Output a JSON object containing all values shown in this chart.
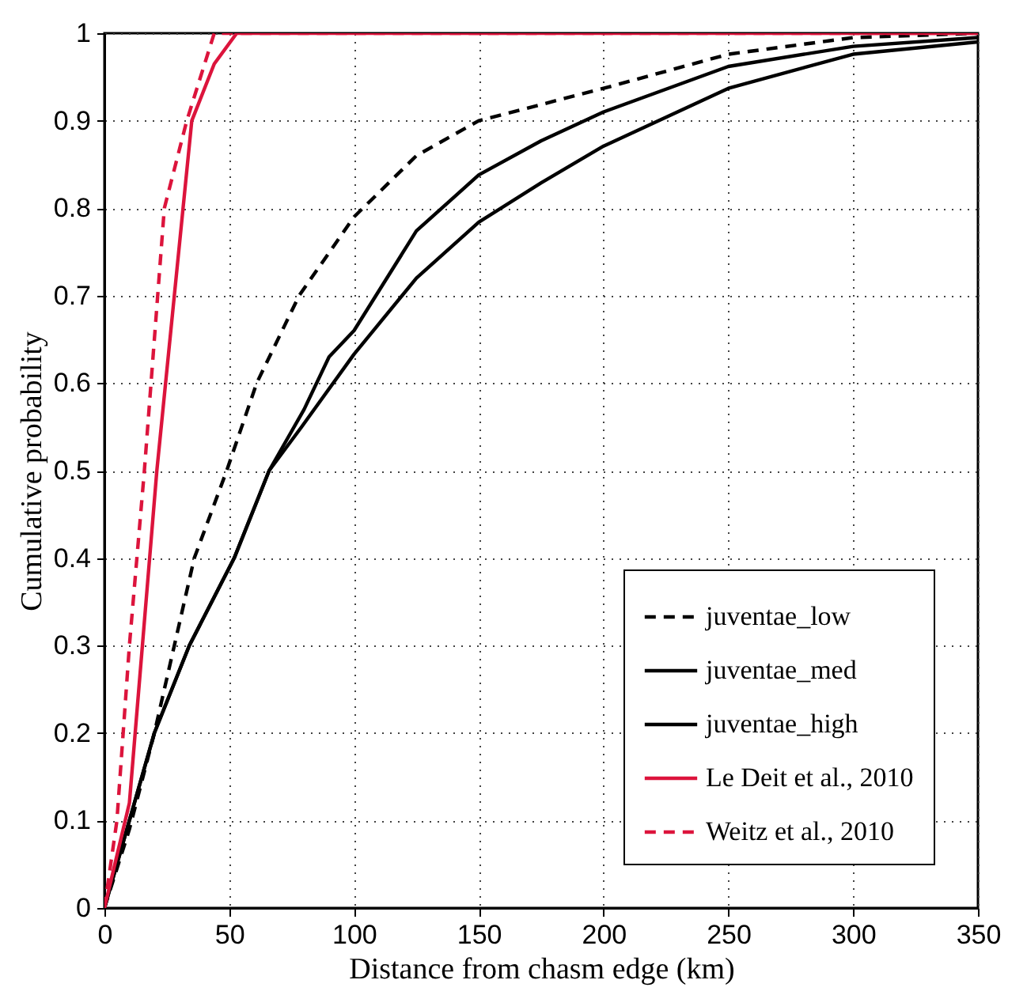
{
  "chart_data": {
    "type": "line",
    "xlabel": "Distance from chasm edge (km)",
    "ylabel": "Cumulative probability",
    "xlim": [
      0,
      350
    ],
    "ylim": [
      0,
      1
    ],
    "xticks": [
      0,
      50,
      100,
      150,
      200,
      250,
      300,
      350
    ],
    "yticks": [
      0,
      0.1,
      0.2,
      0.3,
      0.4,
      0.5,
      0.6,
      0.7,
      0.8,
      0.9,
      1
    ],
    "grid": true,
    "legend": "bottom right",
    "series": [
      {
        "name": "juventae_low",
        "color": "#000000",
        "line_style": "dashed",
        "x": [
          0,
          10,
          20,
          28,
          36,
          49,
          61,
          78,
          100,
          125,
          150,
          200,
          250,
          300,
          350
        ],
        "values": [
          0,
          0.09,
          0.2,
          0.3,
          0.4,
          0.5,
          0.6,
          0.7,
          0.79,
          0.86,
          0.9,
          0.937,
          0.976,
          0.995,
          1
        ]
      },
      {
        "name": "juventae_med",
        "color": "#000000",
        "line_style": "solid",
        "x": [
          0,
          10,
          20,
          34,
          52,
          66,
          80,
          90,
          100,
          125,
          150,
          175,
          200,
          250,
          300,
          350
        ],
        "values": [
          0,
          0.1,
          0.2,
          0.3,
          0.4,
          0.5,
          0.57,
          0.63,
          0.66,
          0.774,
          0.838,
          0.877,
          0.91,
          0.962,
          0.985,
          0.995
        ]
      },
      {
        "name": "juventae_high",
        "color": "#000000",
        "line_style": "solid",
        "x": [
          0,
          10,
          20,
          34,
          52,
          66,
          79,
          100,
          125,
          150,
          175,
          200,
          250,
          300,
          350
        ],
        "values": [
          0,
          0.1,
          0.2,
          0.3,
          0.4,
          0.5,
          0.55,
          0.633,
          0.72,
          0.784,
          0.829,
          0.871,
          0.937,
          0.976,
          0.99
        ]
      },
      {
        "name": "Le Deit et al., 2010",
        "color": "#dc143c",
        "line_style": "solid",
        "x": [
          0,
          10,
          21,
          35,
          44,
          53,
          350
        ],
        "values": [
          0,
          0.12,
          0.5,
          0.9,
          0.965,
          1,
          1
        ]
      },
      {
        "name": "Weitz et al., 2010",
        "color": "#dc143c",
        "line_style": "dashed",
        "x": [
          0,
          5,
          10,
          16,
          24,
          33,
          44,
          350
        ],
        "values": [
          0,
          0.1,
          0.3,
          0.5,
          0.8,
          0.9,
          1,
          1
        ]
      }
    ]
  }
}
